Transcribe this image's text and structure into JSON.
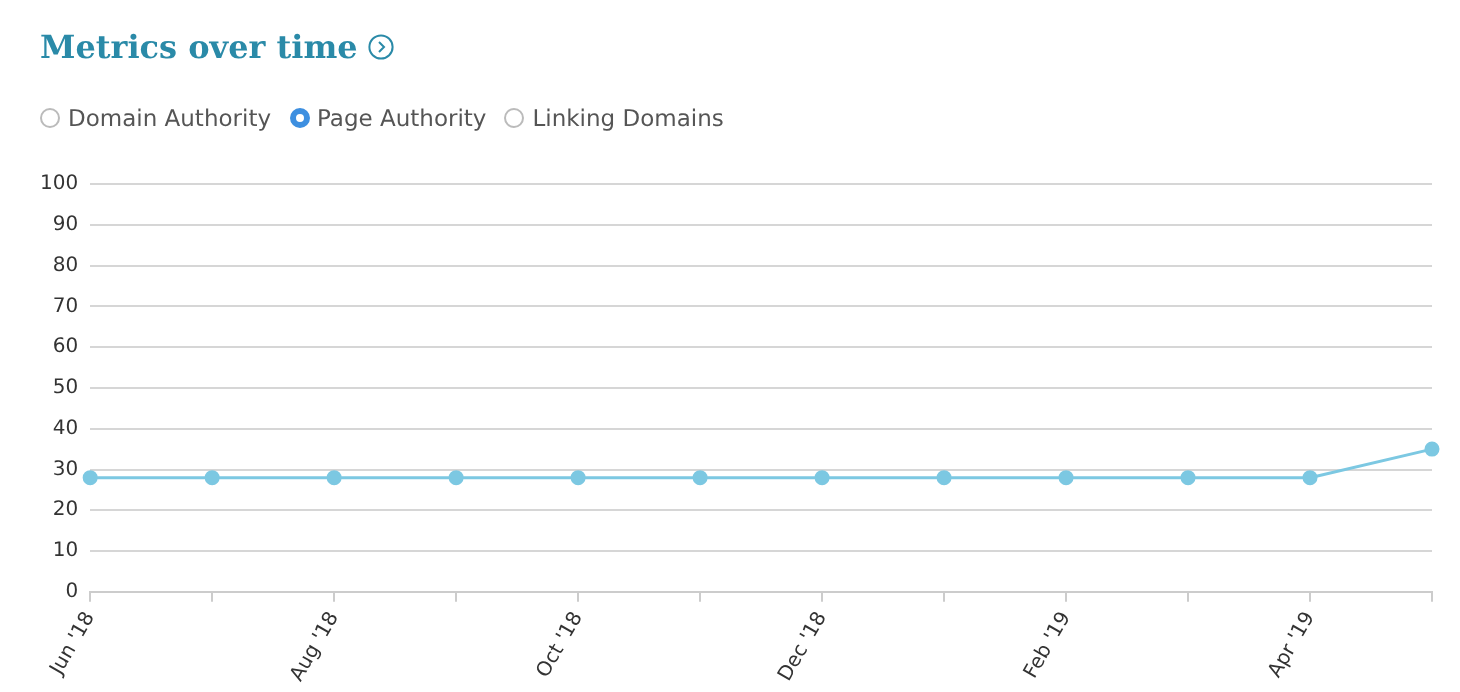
{
  "chart_data": {
    "type": "line",
    "title": "Metrics over time",
    "annotations": [
      "Domain Authority",
      "Page Authority",
      "Linking Domains"
    ],
    "categories": [
      "Jun '18",
      null,
      "Aug '18",
      null,
      "Oct '18",
      null,
      "Dec '18",
      null,
      "Feb '19",
      null,
      "Apr '19",
      null
    ],
    "series": [
      {
        "color": "#7cc8e2",
        "values": [
          28,
          28,
          28,
          28,
          28,
          28,
          28,
          28,
          28,
          28,
          28,
          35
        ]
      }
    ],
    "ylim": [
      0,
      100
    ],
    "yticks": [
      0,
      10,
      20,
      30,
      40,
      50,
      60,
      70,
      80,
      90,
      100
    ],
    "grid": "y",
    "marker": "circle",
    "line_style": "solid",
    "legend": false
  }
}
